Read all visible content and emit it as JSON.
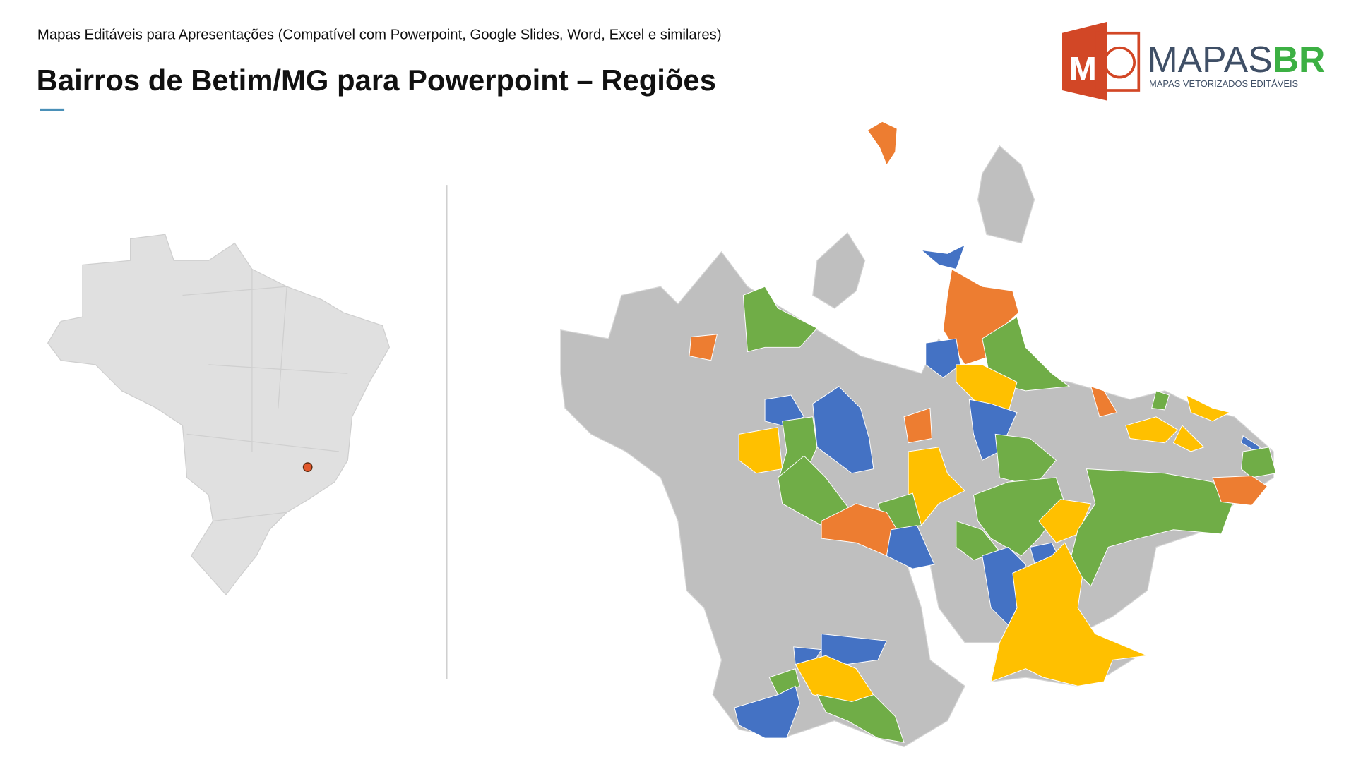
{
  "header": {
    "subtitle": "Mapas Editáveis para Apresentações (Compatível com Powerpoint, Google Slides, Word, Excel e similares)",
    "title": "Bairros de Betim/MG para Powerpoint – Regiões"
  },
  "logo": {
    "icon_letter": "M",
    "brand_main": "MAPAS",
    "brand_accent": "BR",
    "tagline": "MAPAS VETORIZADOS EDITÁVEIS"
  }
}
